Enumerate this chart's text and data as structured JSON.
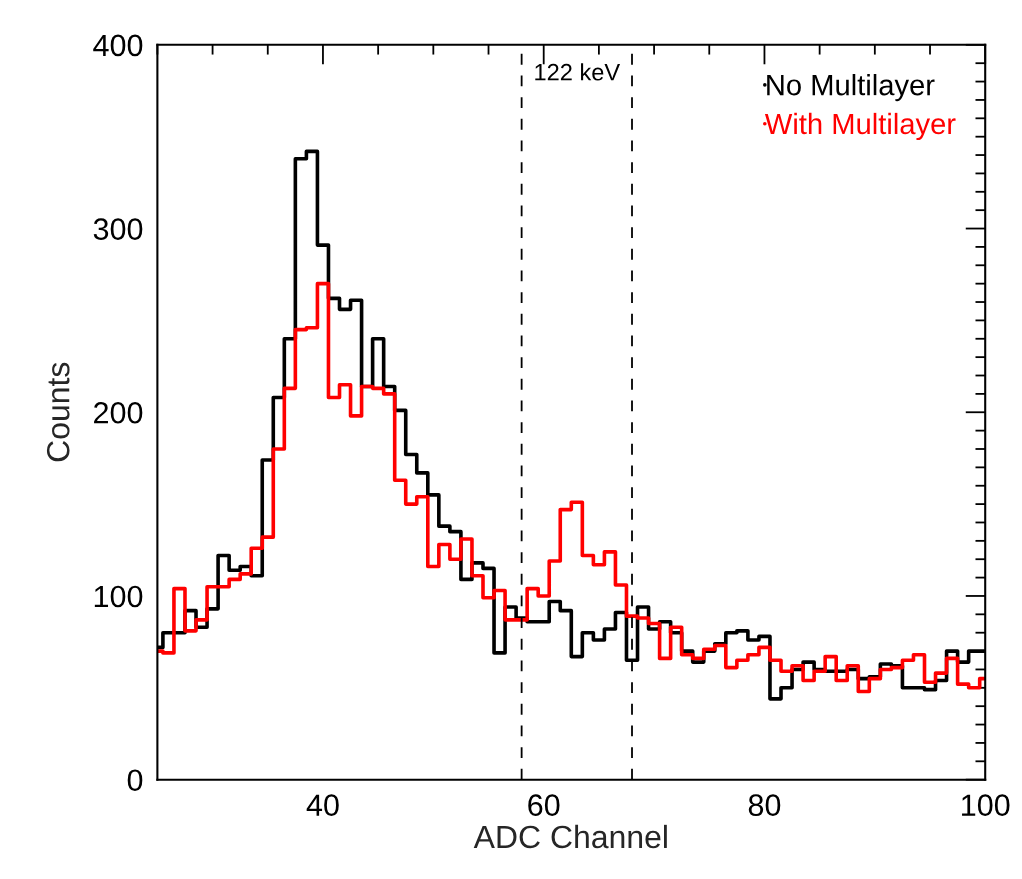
{
  "chart_data": {
    "type": "histogram",
    "xlabel": "ADC Channel",
    "ylabel": "Counts",
    "bins": [
      25,
      25.5,
      26.5,
      27.5,
      28.5,
      29.5,
      30.5,
      31.5,
      32.5,
      33.5,
      34.5,
      35.5,
      36.5,
      37.5,
      38.5,
      39.5,
      40.5,
      41.5,
      42.5,
      43.5,
      44.5,
      45.5,
      46.5,
      47.5,
      48.5,
      49.5,
      50.5,
      51.5,
      52.5,
      53.5,
      54.5,
      55.5,
      56.5,
      57.5,
      58.5,
      59.5,
      60.5,
      61.5,
      62.5,
      63.5,
      64.5,
      65.5,
      66.5,
      67.5,
      68.5,
      69.5,
      70.5,
      71.5,
      72.5,
      73.5,
      74.5,
      75.5,
      76.5,
      77.5,
      78.5,
      79.5,
      80.5,
      81.5,
      82.5,
      83.5,
      84.5,
      85.5,
      86.5,
      87.5,
      88.5,
      89.5,
      90.5,
      91.5,
      92.5,
      93.5,
      94.5,
      95.5,
      96.5,
      97.5,
      98.5,
      99.5,
      100
    ],
    "series": [
      {
        "name": "No Multilayer",
        "color": "#000000",
        "values": [
          72,
          80,
          80,
          92,
          83,
          93,
          122,
          114,
          116,
          111,
          174,
          208,
          240,
          338,
          342,
          291,
          262,
          256,
          261,
          214,
          240,
          214,
          201,
          177,
          167,
          155,
          138,
          135,
          109,
          118,
          115,
          69,
          94,
          88,
          86,
          86,
          97,
          92,
          67,
          80,
          76,
          82,
          91,
          65,
          94,
          82,
          86,
          80,
          70,
          64,
          70,
          74,
          80,
          81,
          76,
          78,
          44,
          50,
          60,
          64,
          60,
          59,
          59,
          60,
          55,
          56,
          63,
          62,
          50,
          50,
          49,
          54,
          70,
          64,
          70,
          70
        ]
      },
      {
        "name": "With Multilayer",
        "color": "#ff0000",
        "values": [
          70,
          69,
          104,
          81,
          87,
          105,
          105,
          109,
          112,
          126,
          132,
          180,
          213,
          245,
          246,
          270,
          208,
          215,
          198,
          214,
          213,
          210,
          163,
          150,
          154,
          116,
          128,
          120,
          131,
          111,
          99,
          103,
          87,
          87,
          104,
          100,
          119,
          147,
          151,
          122,
          117,
          124,
          106,
          89,
          88,
          85,
          66,
          83,
          68,
          66,
          71,
          73,
          61,
          65,
          68,
          72,
          65,
          59,
          62,
          54,
          59,
          67,
          54,
          62,
          48,
          55,
          60,
          61,
          65,
          68,
          53,
          58,
          66,
          52,
          50,
          55
        ]
      }
    ],
    "xlim": [
      25,
      100
    ],
    "xticks": [
      40,
      60,
      80,
      100
    ],
    "ylim": [
      0,
      400
    ],
    "yticks": [
      0,
      100,
      200,
      300,
      400
    ],
    "ref_lines": [
      {
        "axis": "x",
        "value": 58,
        "line_style": "dashed",
        "color": "#000000"
      },
      {
        "axis": "x",
        "value": 68,
        "line_style": "dashed",
        "color": "#000000"
      }
    ],
    "annotations": [
      "122 keV"
    ],
    "legend": "top right",
    "grid": false
  }
}
